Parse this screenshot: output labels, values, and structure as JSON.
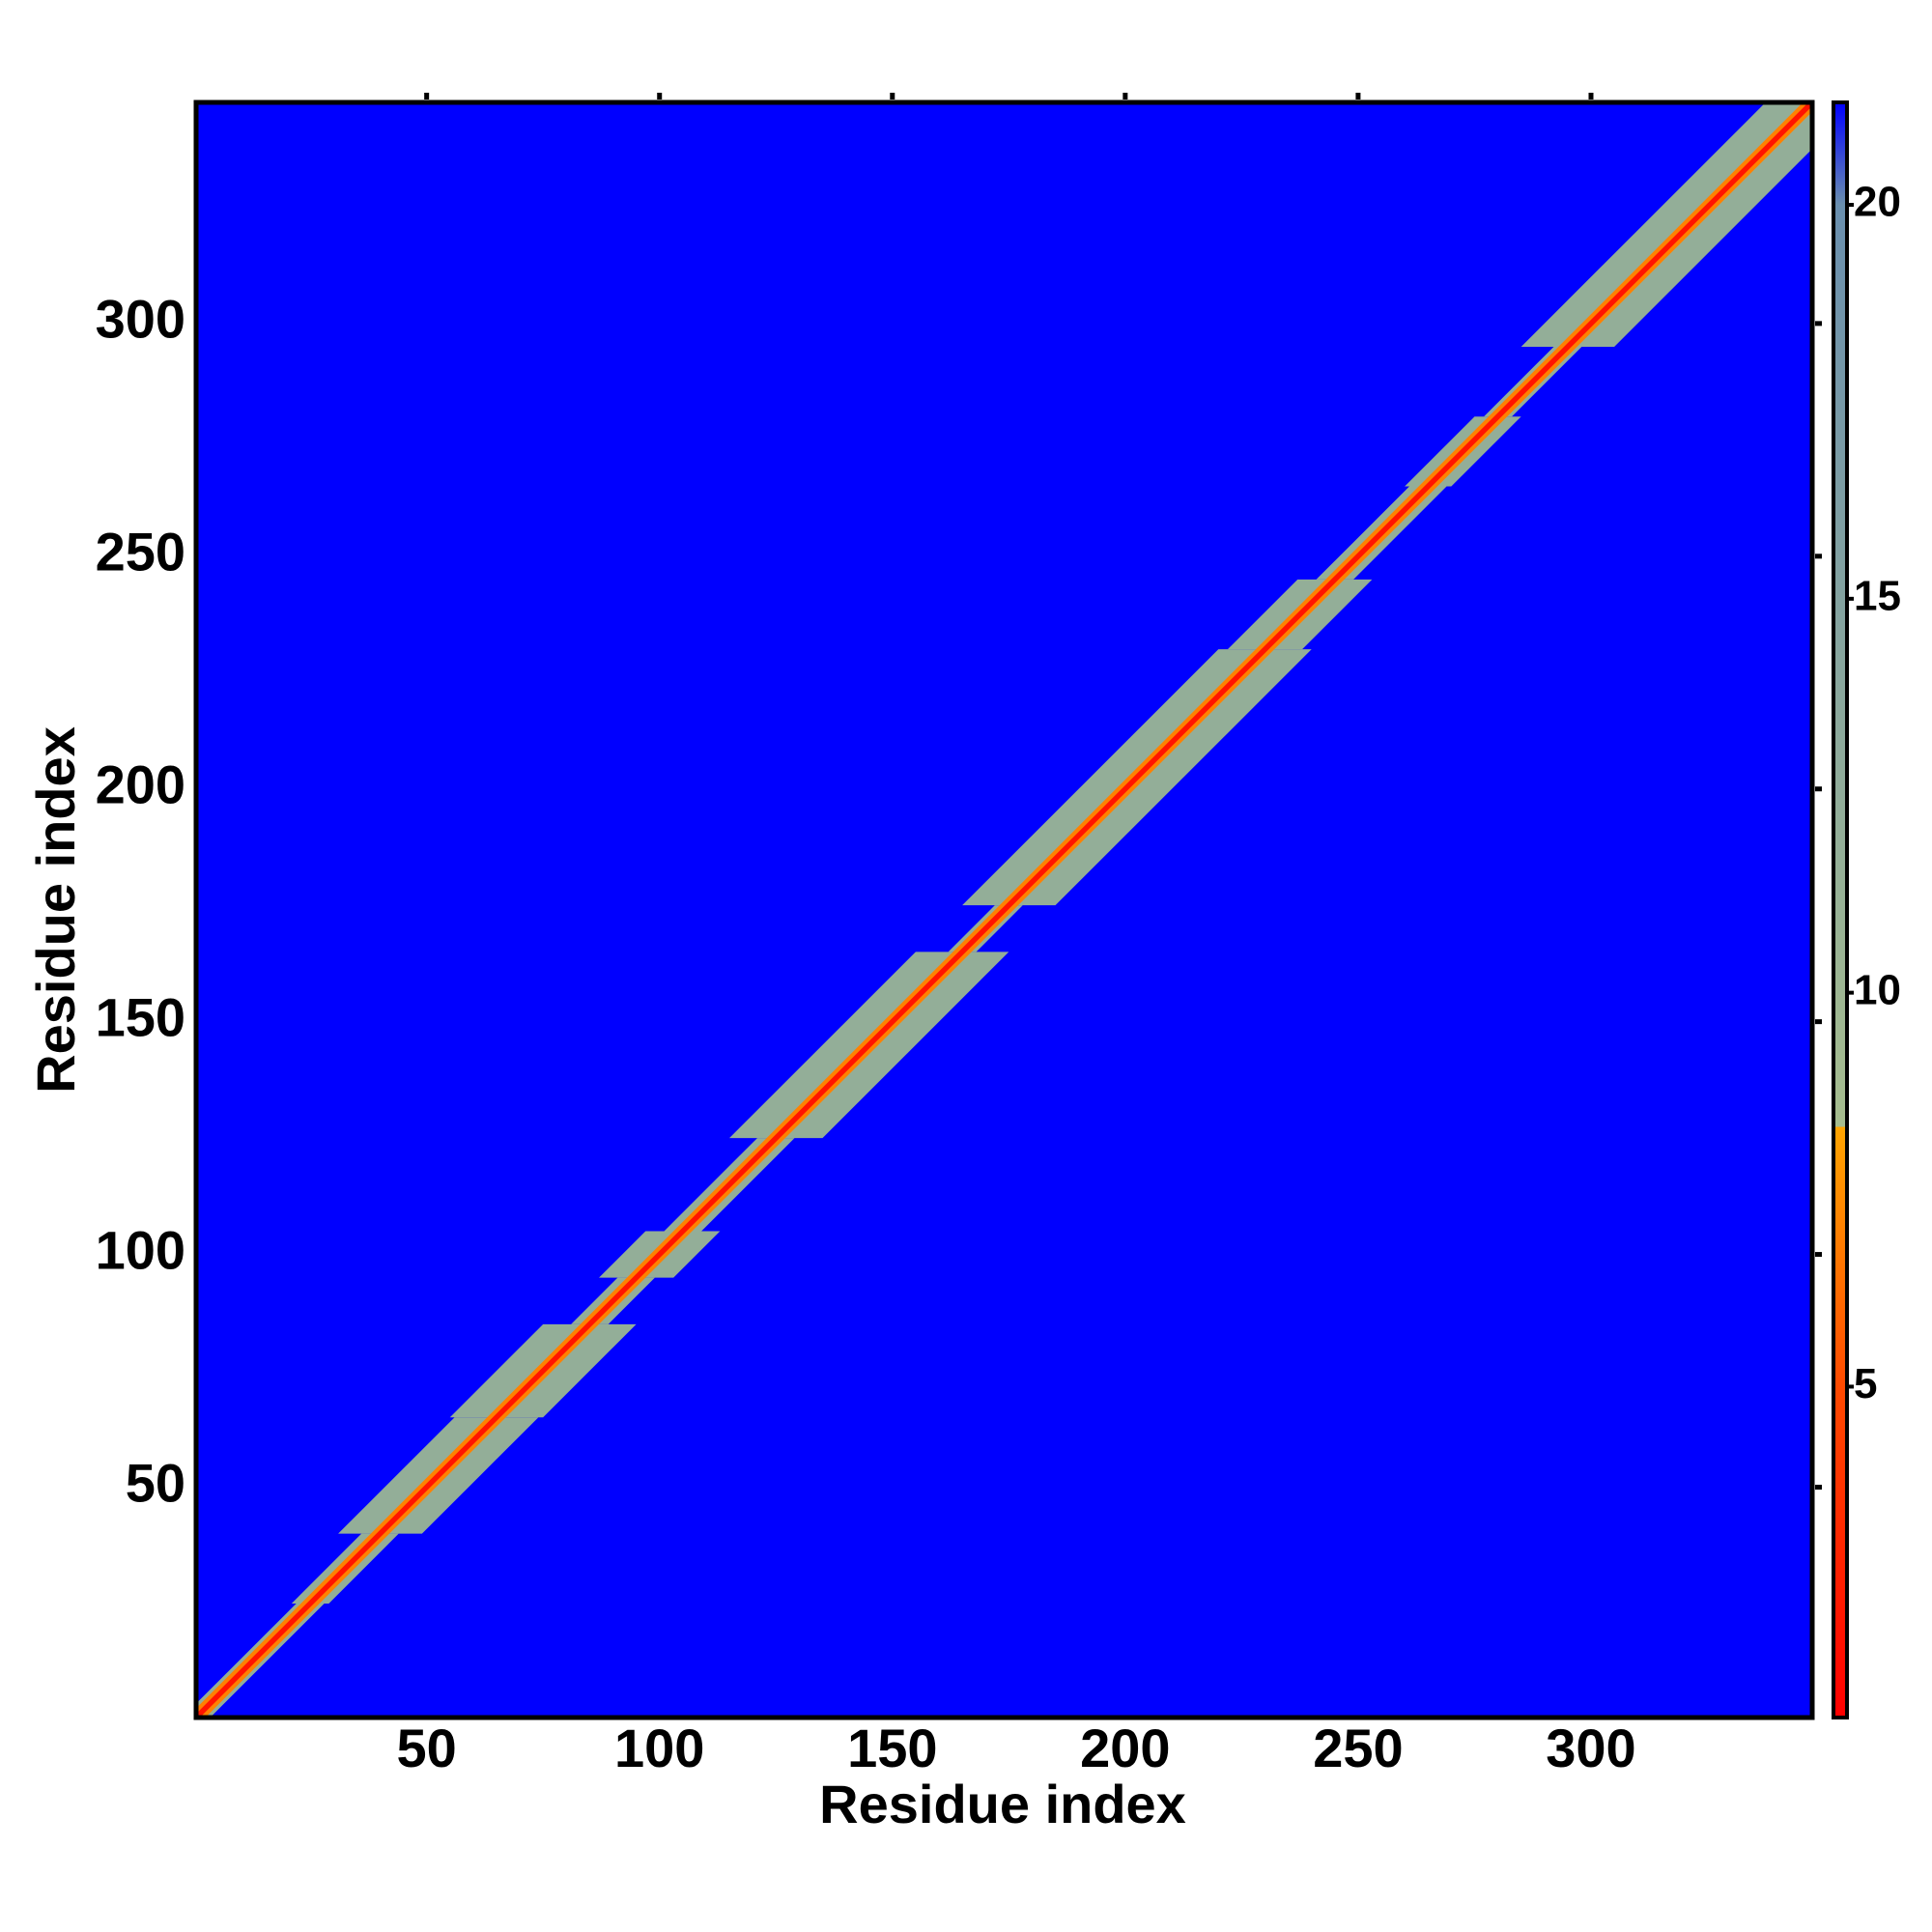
{
  "chart_data": {
    "type": "heatmap",
    "xlabel": "Residue index",
    "ylabel": "Residue index",
    "xlim": [
      0.5,
      347.5
    ],
    "ylim": [
      0.5,
      347.5
    ],
    "xticks": [
      50,
      100,
      150,
      200,
      250,
      300
    ],
    "yticks": [
      50,
      100,
      150,
      200,
      250,
      300
    ],
    "background_color": "#0000ff",
    "zlim": [
      0.8,
      21.3
    ],
    "zticks": [
      5,
      10,
      15,
      20
    ],
    "colorscale": [
      {
        "value": 0.8,
        "color": "#ff0000"
      },
      {
        "value": 5,
        "color": "#ff4a00"
      },
      {
        "value": 8.3,
        "color": "#ffa500"
      },
      {
        "value": 8.3,
        "color": "#a6bd8e"
      },
      {
        "value": 20,
        "color": "#6a8fae"
      },
      {
        "value": 21.3,
        "color": "#0000ff"
      }
    ],
    "bands": [
      {
        "from": 1,
        "to": 25,
        "halfwidth": 3,
        "value": 12
      },
      {
        "from": 25,
        "to": 40,
        "halfwidth": 4,
        "value": 12
      },
      {
        "from": 40,
        "to": 65,
        "halfwidth": 9,
        "value": 12
      },
      {
        "from": 65,
        "to": 85,
        "halfwidth": 10,
        "value": 12
      },
      {
        "from": 85,
        "to": 95,
        "halfwidth": 4,
        "value": 12
      },
      {
        "from": 95,
        "to": 105,
        "halfwidth": 8,
        "value": 12
      },
      {
        "from": 105,
        "to": 125,
        "halfwidth": 4,
        "value": 12
      },
      {
        "from": 125,
        "to": 165,
        "halfwidth": 10,
        "value": 12
      },
      {
        "from": 165,
        "to": 175,
        "halfwidth": 3,
        "value": 12
      },
      {
        "from": 175,
        "to": 230,
        "halfwidth": 10,
        "value": 12
      },
      {
        "from": 230,
        "to": 245,
        "halfwidth": 8,
        "value": 12
      },
      {
        "from": 245,
        "to": 265,
        "halfwidth": 4,
        "value": 12
      },
      {
        "from": 265,
        "to": 280,
        "halfwidth": 5,
        "value": 12
      },
      {
        "from": 280,
        "to": 295,
        "halfwidth": 3,
        "value": 12
      },
      {
        "from": 295,
        "to": 347,
        "halfwidth": 10,
        "value": 12
      },
      {
        "from": 1,
        "to": 347,
        "halfwidth": 2,
        "value": 7
      },
      {
        "from": 1,
        "to": 347,
        "halfwidth": 0.8,
        "value": 2
      }
    ]
  }
}
